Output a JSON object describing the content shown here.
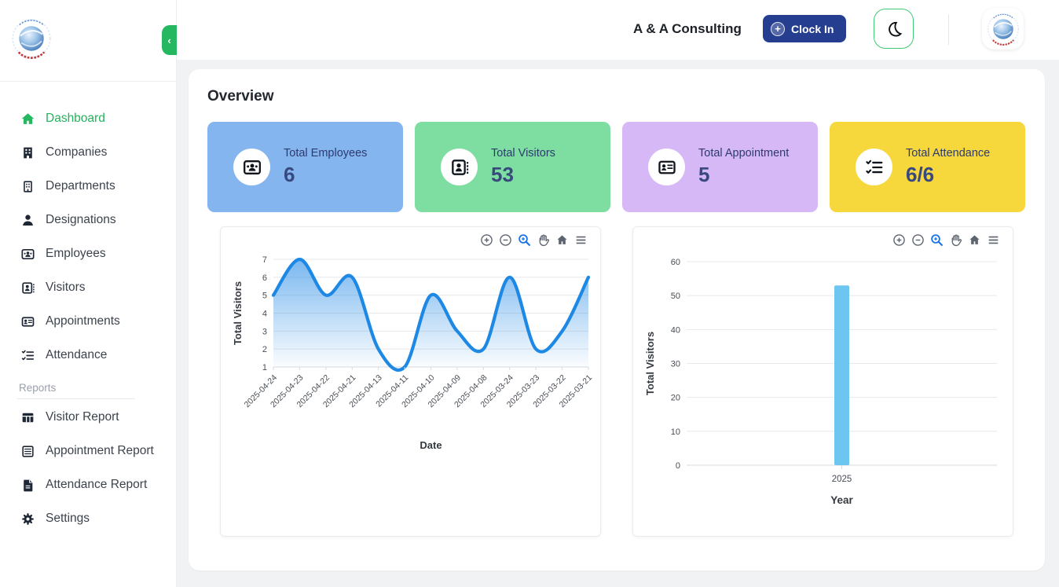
{
  "header": {
    "title": "A & A Consulting",
    "clock_in_label": "Clock In",
    "theme_toggle_icon": "moon-icon",
    "avatar_icon": "company-logo"
  },
  "sidebar": {
    "items": [
      {
        "label": "Dashboard",
        "icon": "home-icon",
        "active": true
      },
      {
        "label": "Companies",
        "icon": "building-icon",
        "active": false
      },
      {
        "label": "Departments",
        "icon": "building-outline-icon",
        "active": false
      },
      {
        "label": "Designations",
        "icon": "person-icon",
        "active": false
      },
      {
        "label": "Employees",
        "icon": "badge-people-icon",
        "active": false
      },
      {
        "label": "Visitors",
        "icon": "contact-card-icon",
        "active": false
      },
      {
        "label": "Appointments",
        "icon": "id-card-icon",
        "active": false
      },
      {
        "label": "Attendance",
        "icon": "checklist-icon",
        "active": false
      }
    ],
    "reports_section_label": "Reports",
    "report_items": [
      {
        "label": "Visitor Report",
        "icon": "table-icon"
      },
      {
        "label": "Appointment Report",
        "icon": "list-icon"
      },
      {
        "label": "Attendance Report",
        "icon": "document-icon"
      },
      {
        "label": "Settings",
        "icon": "gear-icon"
      }
    ]
  },
  "overview": {
    "title": "Overview",
    "stat_cards": [
      {
        "label": "Total Employees",
        "value": "6",
        "bg": "#85b5ef",
        "icon": "badge-people-icon"
      },
      {
        "label": "Total Visitors",
        "value": "53",
        "bg": "#7edda0",
        "icon": "contact-card-icon"
      },
      {
        "label": "Total Appointment",
        "value": "5",
        "bg": "#d7b8f7",
        "icon": "id-card-icon"
      },
      {
        "label": "Total Attendance",
        "value": "6/6",
        "bg": "#f6d73c",
        "icon": "checklist-icon"
      }
    ]
  },
  "chart_toolbar": {
    "icons": [
      "zoom-in",
      "zoom-out",
      "box-zoom",
      "pan",
      "reset-home",
      "menu"
    ],
    "active_icon": "box-zoom",
    "active_color": "#1a73e8",
    "idle_color": "#5d6470"
  },
  "chart_data": [
    {
      "type": "area",
      "title": "",
      "x": [
        "2025-04-24",
        "2025-04-23",
        "2025-04-22",
        "2025-04-21",
        "2025-04-13",
        "2025-04-11",
        "2025-04-10",
        "2025-04-09",
        "2025-04-08",
        "2025-03-24",
        "2025-03-23",
        "2025-03-22",
        "2025-03-21"
      ],
      "values": [
        5,
        7,
        5,
        6,
        2,
        1,
        5,
        3,
        2,
        6,
        2,
        3,
        6
      ],
      "xlabel": "Date",
      "ylabel": "Total Visitors",
      "ylim": [
        1,
        7
      ],
      "yticks": [
        1,
        2,
        3,
        4,
        5,
        6,
        7
      ],
      "smooth": true,
      "grid": true,
      "line_color": "#1e88e5",
      "fill_top": "rgba(33,136,229,0.60)",
      "fill_bottom": "rgba(33,136,229,0.02)"
    },
    {
      "type": "bar",
      "title": "",
      "categories": [
        "2025"
      ],
      "values": [
        53
      ],
      "xlabel": "Year",
      "ylabel": "Total Visitors",
      "ylim": [
        0,
        60
      ],
      "yticks": [
        0,
        10,
        20,
        30,
        40,
        50,
        60
      ],
      "grid": true,
      "bar_color": "#6dc6f0"
    }
  ],
  "colors": {
    "accent_green": "#25b860",
    "clock_in_bg": "#263e8f",
    "page_bg": "#f1f2f4",
    "grid_line": "#e7e8ea",
    "axis_line": "#d9dadc",
    "tick_text": "#474c54",
    "axis_title": "#34383f"
  }
}
